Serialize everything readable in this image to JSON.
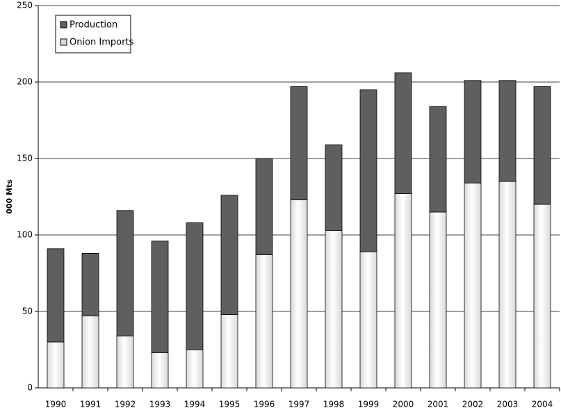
{
  "chart_data": {
    "type": "stacked_bar",
    "y_label": "000 Mts",
    "categories": [
      "1990",
      "1991",
      "1992",
      "1993",
      "1994",
      "1995",
      "1996",
      "1997",
      "1998",
      "1999",
      "2000",
      "2001",
      "2002",
      "2003",
      "2004"
    ],
    "series": [
      {
        "name": "Onion Imports",
        "color": "#d8d8d8",
        "values": [
          30,
          47,
          34,
          23,
          25,
          48,
          87,
          123,
          103,
          89,
          127,
          115,
          134,
          135,
          120
        ]
      },
      {
        "name": "Production",
        "color": "#5f5f5f",
        "values": [
          61,
          41,
          82,
          73,
          83,
          78,
          63,
          74,
          56,
          106,
          79,
          69,
          67,
          66,
          77
        ]
      }
    ],
    "ylim": [
      0,
      250
    ],
    "yticks": [
      0,
      50,
      100,
      150,
      200,
      250
    ],
    "grid": true,
    "legend": "top-left"
  }
}
